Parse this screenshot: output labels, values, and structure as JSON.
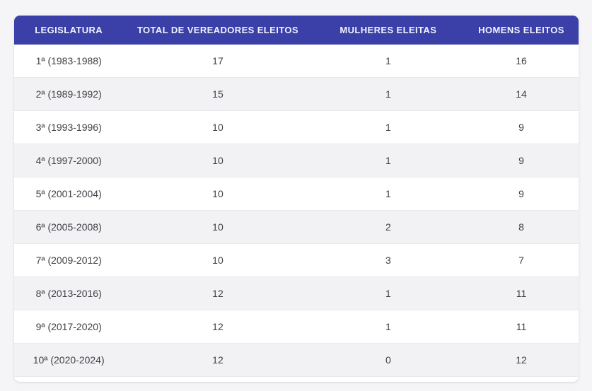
{
  "page": {
    "background_color": "#f5f5f7"
  },
  "colors": {
    "header_bg": "#3a40a8",
    "header_text": "#f2f3fc",
    "row_bg": "#ffffff",
    "row_stripe_bg": "#f2f2f5",
    "cell_text": "#3f3f46",
    "row_border": "#e8e8ee"
  },
  "table": {
    "columns": [
      "LEGISLATURA",
      "TOTAL DE VEREADORES ELEITOS",
      "MULHERES ELEITAS",
      "HOMENS ELEITOS"
    ],
    "rows": [
      [
        "1ª (1983-1988)",
        "17",
        "1",
        "16"
      ],
      [
        "2ª (1989-1992)",
        "15",
        "1",
        "14"
      ],
      [
        "3ª (1993-1996)",
        "10",
        "1",
        "9"
      ],
      [
        "4ª (1997-2000)",
        "10",
        "1",
        "9"
      ],
      [
        "5ª (2001-2004)",
        "10",
        "1",
        "9"
      ],
      [
        "6ª (2005-2008)",
        "10",
        "2",
        "8"
      ],
      [
        "7ª (2009-2012)",
        "10",
        "3",
        "7"
      ],
      [
        "8ª (2013-2016)",
        "12",
        "1",
        "11"
      ],
      [
        "9ª (2017-2020)",
        "12",
        "1",
        "11"
      ],
      [
        "10ª (2020-2024)",
        "12",
        "0",
        "12"
      ]
    ]
  },
  "chart_data": {
    "type": "table",
    "title": "",
    "columns": [
      "LEGISLATURA",
      "TOTAL DE VEREADORES ELEITOS",
      "MULHERES ELEITAS",
      "HOMENS ELEITOS"
    ],
    "categories": [
      "1ª (1983-1988)",
      "2ª (1989-1992)",
      "3ª (1993-1996)",
      "4ª (1997-2000)",
      "5ª (2001-2004)",
      "6ª (2005-2008)",
      "7ª (2009-2012)",
      "8ª (2013-2016)",
      "9ª (2017-2020)",
      "10ª (2020-2024)"
    ],
    "series": [
      {
        "name": "TOTAL DE VEREADORES ELEITOS",
        "values": [
          17,
          15,
          10,
          10,
          10,
          10,
          10,
          12,
          12,
          12
        ]
      },
      {
        "name": "MULHERES ELEITAS",
        "values": [
          1,
          1,
          1,
          1,
          1,
          2,
          3,
          1,
          1,
          0
        ]
      },
      {
        "name": "HOMENS ELEITOS",
        "values": [
          16,
          14,
          9,
          9,
          9,
          8,
          7,
          11,
          11,
          12
        ]
      }
    ],
    "layout": {
      "grid": "row-borders",
      "striped": true,
      "legend_position": "none"
    }
  }
}
